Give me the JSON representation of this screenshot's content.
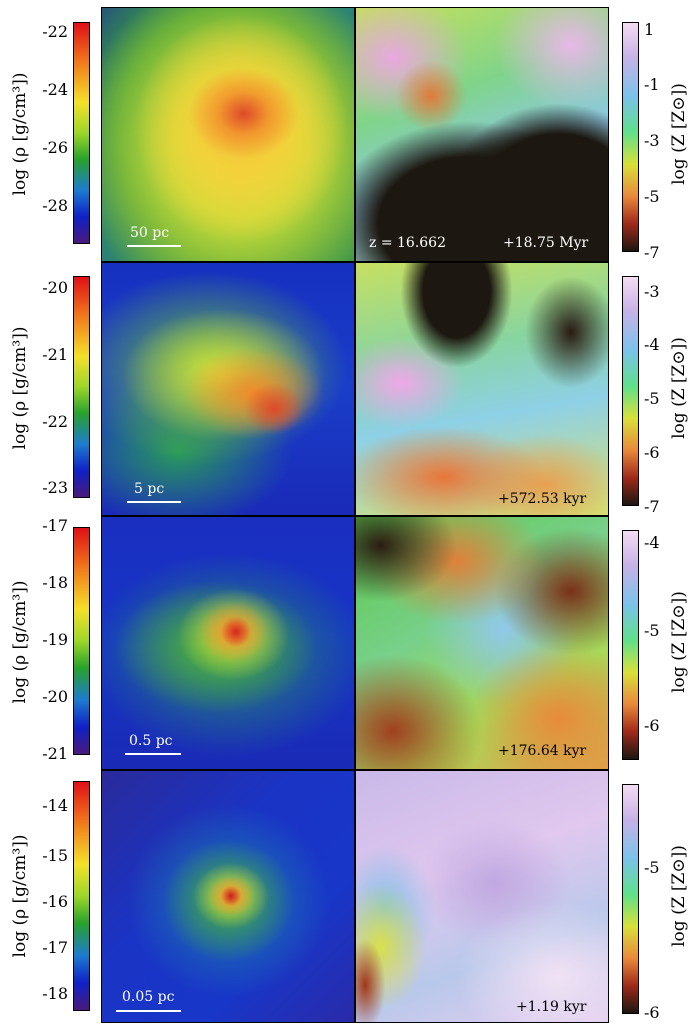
{
  "density_label": "log (ρ [g/cm³])",
  "metal_label": "log (Z [Z⊙])",
  "rows": [
    {
      "density_ticks": [
        "-22",
        "-24",
        "-26",
        "-28"
      ],
      "metal_ticks": [
        "1",
        "-1",
        "-3",
        "-5",
        "-7"
      ],
      "scale": "50 pc",
      "redshift": "z = 16.662",
      "time": "+18.75 Myr"
    },
    {
      "density_ticks": [
        "-20",
        "-21",
        "-22",
        "-23"
      ],
      "metal_ticks": [
        "-3",
        "-4",
        "-5",
        "-6",
        "-7"
      ],
      "scale": "5 pc",
      "time": "+572.53 kyr"
    },
    {
      "density_ticks": [
        "-17",
        "-18",
        "-19",
        "-20",
        "-21"
      ],
      "metal_ticks": [
        "-4",
        "-5",
        "-6"
      ],
      "scale": "0.5 pc",
      "time": "+176.64 kyr"
    },
    {
      "density_ticks": [
        "-14",
        "-15",
        "-16",
        "-17",
        "-18"
      ],
      "metal_ticks": [
        "-5",
        "-6"
      ],
      "scale": "0.05 pc",
      "time": "+1.19 kyr"
    }
  ],
  "colors": {
    "density_cmap": [
      "#e0101a",
      "#f07b1a",
      "#f5e22a",
      "#a8d82a",
      "#2fa52a",
      "#1f7fd0",
      "#1022c8",
      "#4a1a80"
    ],
    "metal_cmap": [
      "#f4d9f0",
      "#c9b5e8",
      "#7fc0e8",
      "#5fe08a",
      "#d8e03a",
      "#e88a3a",
      "#a02a1a",
      "#1c1710"
    ]
  }
}
